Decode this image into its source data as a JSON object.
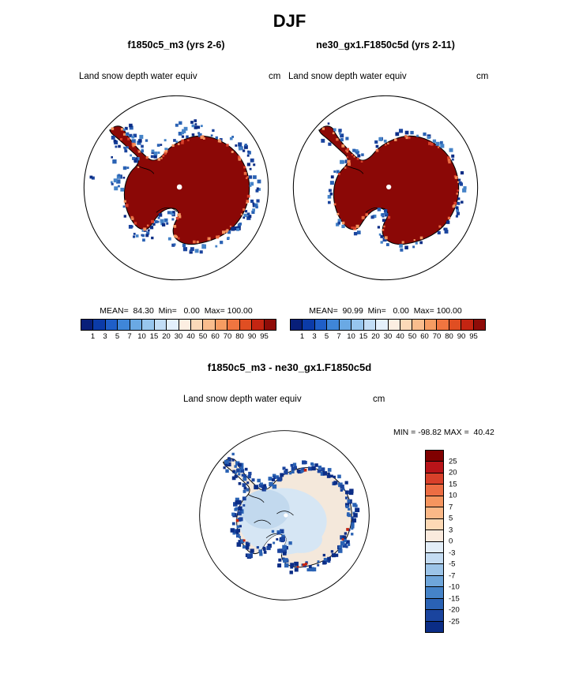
{
  "title": "DJF",
  "panels": [
    {
      "title": "f1850c5_m3 (yrs 2-6)",
      "field": "Land snow depth water equiv",
      "units": "cm",
      "stats": "MEAN=  84.30  Min=   0.00  Max= 100.00"
    },
    {
      "title": "ne30_gx1.F1850c5d (yrs 2-11)",
      "field": "Land snow depth water equiv",
      "units": "cm",
      "stats": "MEAN=  90.99  Min=   0.00  Max= 100.00"
    }
  ],
  "diff": {
    "title": "f1850c5_m3 - ne30_gx1.F1850c5d",
    "field": "Land snow depth water equiv",
    "units": "cm",
    "minmax": "MIN = -98.82 MAX =  40.42"
  },
  "colorbar_top": {
    "ticks": [
      "1",
      "3",
      "5",
      "7",
      "10",
      "15",
      "20",
      "30",
      "40",
      "50",
      "60",
      "70",
      "80",
      "90",
      "95"
    ],
    "colors": [
      "#081f7a",
      "#0b3ba8",
      "#1f5fc8",
      "#3f86d8",
      "#6aa9e4",
      "#97c6ee",
      "#c2ddf5",
      "#e4f0fb",
      "#fceee2",
      "#fbd9b8",
      "#f9bd8d",
      "#f69c62",
      "#f07540",
      "#e04e22",
      "#c42512",
      "#8f0c08"
    ]
  },
  "colorbar_diff": {
    "ticks": [
      "25",
      "20",
      "15",
      "10",
      "7",
      "5",
      "3",
      "0",
      "-3",
      "-5",
      "-7",
      "-10",
      "-15",
      "-20",
      "-25"
    ],
    "colors": [
      "#800000",
      "#b81419",
      "#d8402a",
      "#ec6d43",
      "#f5955f",
      "#fbb887",
      "#fdd9b5",
      "#faeadd",
      "#e3eef8",
      "#c4dcf2",
      "#9cc4e8",
      "#6fa6da",
      "#4583c8",
      "#2a62b4",
      "#1a449e",
      "#0b2d86"
    ]
  },
  "map_colors": {
    "continent": "#8b0806",
    "ocean": "#ffffff",
    "coast": "#000000",
    "blue_speckles": [
      "#0b2d86",
      "#1a449e",
      "#2a62b4",
      "#4583c8"
    ],
    "fringe_speckles": [
      "#ec6d43",
      "#f5955f",
      "#d8402a"
    ],
    "diff_base": "#f4e8db",
    "diff_blue": "#d6e6f4",
    "diff_blue2": "#c2d9ee",
    "diff_navy": [
      "#0b2d86",
      "#1a449e",
      "#2a62b4"
    ],
    "diff_red": "#c42512"
  },
  "chart_data": [
    {
      "type": "heatmap",
      "projection": "south-polar-stereographic",
      "region": "Antarctica",
      "title": "f1850c5_m3 (yrs 2-6)",
      "variable": "Land snow depth water equiv",
      "units": "cm",
      "season": "DJF",
      "mean": 84.3,
      "min": 0.0,
      "max": 100.0,
      "levels": [
        1,
        3,
        5,
        7,
        10,
        15,
        20,
        30,
        40,
        50,
        60,
        70,
        80,
        90,
        95
      ],
      "colormap": "blue-to-red",
      "legend_position": "bottom"
    },
    {
      "type": "heatmap",
      "projection": "south-polar-stereographic",
      "region": "Antarctica",
      "title": "ne30_gx1.F1850c5d (yrs 2-11)",
      "variable": "Land snow depth water equiv",
      "units": "cm",
      "season": "DJF",
      "mean": 90.99,
      "min": 0.0,
      "max": 100.0,
      "levels": [
        1,
        3,
        5,
        7,
        10,
        15,
        20,
        30,
        40,
        50,
        60,
        70,
        80,
        90,
        95
      ],
      "colormap": "blue-to-red",
      "legend_position": "bottom"
    },
    {
      "type": "heatmap",
      "projection": "south-polar-stereographic",
      "region": "Antarctica",
      "title": "f1850c5_m3 - ne30_gx1.F1850c5d",
      "variable": "Land snow depth water equiv",
      "units": "cm",
      "season": "DJF",
      "min": -98.82,
      "max": 40.42,
      "levels": [
        -25,
        -20,
        -15,
        -10,
        -7,
        -5,
        -3,
        0,
        3,
        5,
        7,
        10,
        15,
        20,
        25
      ],
      "colormap": "red-to-blue (difference)",
      "legend_position": "right"
    }
  ]
}
